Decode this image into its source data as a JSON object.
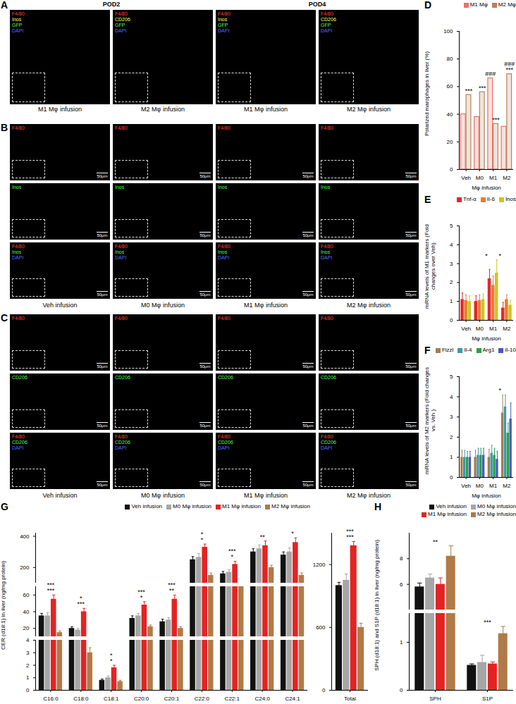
{
  "image_panels": [
    {
      "panel": "A",
      "groups": [
        {
          "header": "POD2",
          "images": [
            {
              "caption": "M1 Mφ infusion",
              "channels": [
                {
                  "label": "F4/80",
                  "color": "#ff4040"
                },
                {
                  "label": "Inos",
                  "color": "#ffff50"
                },
                {
                  "label": "GFP",
                  "color": "#50ff50"
                },
                {
                  "label": "DAPI",
                  "color": "#5070ff"
                }
              ]
            },
            {
              "caption": "M2 Mφ infusion",
              "channels": [
                {
                  "label": "F4/80",
                  "color": "#ff4040"
                },
                {
                  "label": "CD206",
                  "color": "#ffff50"
                },
                {
                  "label": "GFP",
                  "color": "#50ff50"
                },
                {
                  "label": "DAPI",
                  "color": "#5070ff"
                }
              ]
            }
          ]
        },
        {
          "header": "POD4",
          "images": [
            {
              "caption": "M1 Mφ infusion",
              "channels": [
                {
                  "label": "F4/80",
                  "color": "#ff4040"
                },
                {
                  "label": "Inos",
                  "color": "#ffff50"
                },
                {
                  "label": "GFP",
                  "color": "#50ff50"
                },
                {
                  "label": "DAPI",
                  "color": "#5070ff"
                }
              ]
            },
            {
              "caption": "M2 Mφ infusion",
              "channels": [
                {
                  "label": "F4/80",
                  "color": "#ff4040"
                },
                {
                  "label": "CD206",
                  "color": "#ffff50"
                },
                {
                  "label": "GFP",
                  "color": "#50ff50"
                },
                {
                  "label": "DAPI",
                  "color": "#5070ff"
                }
              ]
            }
          ]
        }
      ]
    },
    {
      "panel": "B",
      "scale_bar": "50μm",
      "captions": [
        "Veh infusion",
        "M0 Mφ infusion",
        "M1 Mφ infusion",
        "M2 Mφ infusion"
      ],
      "rows": [
        [
          {
            "label": "F4/80",
            "color": "#ff4040"
          }
        ],
        [
          {
            "label": "Inos",
            "color": "#50ff50"
          }
        ],
        [
          {
            "label": "F4/80",
            "color": "#ff4040"
          },
          {
            "label": "Inos",
            "color": "#50ff50"
          },
          {
            "label": "DAPI",
            "color": "#5070ff"
          }
        ]
      ]
    },
    {
      "panel": "C",
      "scale_bar": "50μm",
      "captions": [
        "Veh infusion",
        "M0 Mφ infusion",
        "M1 Mφ infusion",
        "M2 Mφ infusion"
      ],
      "rows": [
        [
          {
            "label": "F4/80",
            "color": "#ff4040"
          }
        ],
        [
          {
            "label": "CD206",
            "color": "#50ff50"
          }
        ],
        [
          {
            "label": "F4/80",
            "color": "#ff4040"
          },
          {
            "label": "CD206",
            "color": "#50ff50"
          },
          {
            "label": "DAPI",
            "color": "#5070ff"
          }
        ]
      ]
    }
  ],
  "chart_data": [
    {
      "panel": "D",
      "type": "bar",
      "y_label": "Polarized marophages in liver (%)",
      "x_label": "Mφ infusion",
      "categories": [
        "Veh",
        "M0",
        "M1",
        "M2"
      ],
      "series": [
        {
          "name": "M1 Mφ",
          "color": "#e8706a",
          "values": [
            40,
            38,
            66,
            31
          ]
        },
        {
          "name": "M2 Mφ",
          "color": "#b5835a",
          "values": [
            54,
            56,
            33,
            69
          ]
        }
      ],
      "ylim": [
        0,
        100
      ],
      "yticks": [
        0,
        20,
        40,
        60,
        80,
        100
      ],
      "legend": "top",
      "annotations": [
        {
          "category": "Veh",
          "series": "M2 Mφ",
          "texts": [
            "***"
          ]
        },
        {
          "category": "M0",
          "series": "M2 Mφ",
          "texts": [
            "***"
          ]
        },
        {
          "category": "M1",
          "series": "M1 Mφ",
          "texts": [
            "###"
          ]
        },
        {
          "category": "M1",
          "series": "M2 Mφ",
          "texts": [
            "***"
          ]
        },
        {
          "category": "M2",
          "series": "M2 Mφ",
          "texts": [
            "***",
            "###"
          ]
        }
      ]
    },
    {
      "panel": "E",
      "type": "bar",
      "y_label": "mRNA levels of M1 markers (Fold changes over Veh)",
      "x_label": "Mφ infusion",
      "categories": [
        "Veh",
        "M0",
        "M1",
        "M2"
      ],
      "series": [
        {
          "name": "Tnf-α",
          "color": "#e02a2a",
          "values": [
            1.1,
            1.0,
            2.2,
            0.65
          ],
          "errors": [
            0.35,
            0.3,
            0.5,
            0.3
          ]
        },
        {
          "name": "Il-6",
          "color": "#f07a2a",
          "values": [
            1.05,
            1.05,
            1.85,
            1.1
          ],
          "errors": [
            0.3,
            0.3,
            0.5,
            0.25
          ]
        },
        {
          "name": "Inos",
          "color": "#c8c820",
          "values": [
            1.0,
            1.1,
            2.5,
            0.8
          ],
          "errors": [
            0.3,
            0.3,
            0.7,
            0.25
          ]
        }
      ],
      "ylim": [
        0,
        5
      ],
      "yticks": [
        0,
        1,
        2,
        3,
        4,
        5
      ],
      "legend": "top",
      "annotations": [
        {
          "categories": [
            "M0",
            "M1"
          ],
          "texts": [
            "*"
          ]
        },
        {
          "categories": [
            "M1",
            "M2"
          ],
          "texts": [
            "*"
          ]
        }
      ]
    },
    {
      "panel": "F",
      "type": "bar",
      "y_label": "mRNA levels of M2 markers (Fold changes vs. Veh )",
      "x_label": "Mφ infusion",
      "categories": [
        "Veh",
        "M0",
        "M1",
        "M2"
      ],
      "series": [
        {
          "name": "Fizzl",
          "color": "#a67c52",
          "values": [
            1.0,
            1.0,
            1.0,
            3.2
          ],
          "errors": [
            0.35,
            0.35,
            0.4,
            0.9
          ]
        },
        {
          "name": "Il-4",
          "color": "#3a9ab0",
          "values": [
            1.0,
            1.1,
            1.2,
            3.5
          ],
          "errors": [
            0.35,
            0.35,
            0.4,
            0.6
          ]
        },
        {
          "name": "Arg1",
          "color": "#2e9e44",
          "values": [
            1.0,
            1.1,
            1.1,
            2.2
          ],
          "errors": [
            0.3,
            0.35,
            0.35,
            0.5
          ]
        },
        {
          "name": "Il-10",
          "color": "#4a56c8",
          "values": [
            1.0,
            1.1,
            0.9,
            2.9
          ],
          "errors": [
            0.3,
            0.35,
            0.4,
            0.8
          ]
        }
      ],
      "ylim": [
        0,
        5
      ],
      "yticks": [
        0,
        1,
        2,
        3,
        4,
        5
      ],
      "legend": "top",
      "annotations": [
        {
          "categories": [
            "M1",
            "M2"
          ],
          "texts": [
            "*"
          ]
        }
      ]
    },
    {
      "panel": "G",
      "type": "bar",
      "y_label": "CER (d18:1) in liver (ng/mg protein)",
      "categories": [
        "C16:0",
        "C18:0",
        "C18:1",
        "C20:0",
        "C20:1",
        "C22:0",
        "C22:1",
        "C24:0",
        "C24:1"
      ],
      "series": [
        {
          "name": "Veh infusion",
          "color": "#111111",
          "values": [
            35,
            20,
            0.8,
            32,
            28,
            250,
            160,
            300,
            280
          ],
          "errors": [
            3,
            2,
            0.1,
            3,
            3,
            20,
            15,
            20,
            20
          ]
        },
        {
          "name": "M0 Mφ infusion",
          "color": "#a6a6a6",
          "values": [
            35,
            18,
            1.0,
            35,
            30,
            265,
            170,
            320,
            300
          ],
          "errors": [
            4,
            2,
            0.15,
            3,
            3,
            25,
            15,
            25,
            25
          ]
        },
        {
          "name": "M1 Mφ infusion",
          "color": "#e32323",
          "values": [
            55,
            40,
            1.8,
            48,
            55,
            330,
            220,
            340,
            360
          ],
          "errors": [
            5,
            4,
            0.2,
            4,
            5,
            20,
            20,
            30,
            30
          ]
        },
        {
          "name": "M2 Mφ infusion",
          "color": "#b07a48",
          "values": [
            15,
            3,
            0.7,
            22,
            20,
            150,
            90,
            200,
            150
          ],
          "errors": [
            2,
            0.4,
            0.1,
            2,
            2,
            15,
            10,
            15,
            15
          ]
        }
      ],
      "axis_segments": [
        {
          "ylim": [
            0,
            4
          ],
          "yticks": [
            0,
            1,
            2,
            3,
            4
          ]
        },
        {
          "ylim": [
            10,
            70
          ],
          "yticks": [
            20,
            40,
            60
          ]
        },
        {
          "ylim": [
            100,
            420
          ],
          "yticks": [
            200,
            400
          ]
        }
      ],
      "legend": "top",
      "annotations": [
        {
          "categories": [
            "C16:0"
          ],
          "texts": [
            "***",
            "***"
          ]
        },
        {
          "categories": [
            "C18:0"
          ],
          "texts": [
            "***",
            "*"
          ]
        },
        {
          "categories": [
            "C18:1"
          ],
          "texts": [
            "*",
            "*"
          ]
        },
        {
          "categories": [
            "C20:0"
          ],
          "texts": [
            "*",
            "***"
          ]
        },
        {
          "categories": [
            "C20:1"
          ],
          "texts": [
            "**",
            "***"
          ]
        },
        {
          "categories": [
            "C22:0"
          ],
          "texts": [
            "*",
            "*"
          ]
        },
        {
          "categories": [
            "C22:1"
          ],
          "texts": [
            "*",
            "***"
          ]
        },
        {
          "categories": [
            "C24:0"
          ],
          "texts": [
            "**"
          ]
        },
        {
          "categories": [
            "C24:1"
          ],
          "texts": [
            "*"
          ]
        }
      ]
    },
    {
      "type": "bar",
      "categories": [
        "Total"
      ],
      "series": [
        {
          "name": "Veh infusion",
          "color": "#111111",
          "values": [
            1000
          ],
          "errors": [
            30
          ]
        },
        {
          "name": "M0 Mφ infusion",
          "color": "#a6a6a6",
          "values": [
            1050
          ],
          "errors": [
            60
          ]
        },
        {
          "name": "M1 Mφ infusion",
          "color": "#e32323",
          "values": [
            1380
          ],
          "errors": [
            40
          ]
        },
        {
          "name": "M2 Mφ infusion",
          "color": "#b07a48",
          "values": [
            600
          ],
          "errors": [
            40
          ]
        }
      ],
      "ylim": [
        0,
        1500
      ],
      "yticks": [
        0,
        600,
        1200
      ],
      "annotations": [
        {
          "categories": [
            "Total"
          ],
          "texts": [
            "***",
            "***"
          ]
        }
      ]
    },
    {
      "panel": "H",
      "type": "bar",
      "y_label": "SPH (d18:1) and S1P (d18:1) in liver (ng/mg protein)",
      "categories": [
        "SPH",
        "S1P"
      ],
      "series": [
        {
          "name": "Veh infusion",
          "color": "#111111",
          "values": [
            5.8,
            0.52
          ],
          "errors": [
            0.3,
            0.03
          ]
        },
        {
          "name": "M0 Mφ infusion",
          "color": "#a6a6a6",
          "values": [
            6.5,
            0.58
          ],
          "errors": [
            0.3,
            0.15
          ]
        },
        {
          "name": "M1 Mφ infusion",
          "color": "#e32323",
          "values": [
            6.0,
            0.55
          ],
          "errors": [
            0.5,
            0.04
          ]
        },
        {
          "name": "M2 Mφ infusion",
          "color": "#b07a48",
          "values": [
            8.2,
            1.18
          ],
          "errors": [
            0.8,
            0.15
          ]
        }
      ],
      "axis_segments": [
        {
          "ylim": [
            0,
            1.6
          ],
          "yticks": [
            0,
            1
          ]
        },
        {
          "ylim": [
            4,
            10
          ],
          "yticks": [
            6,
            8
          ]
        }
      ],
      "legend": "top",
      "annotations": [
        {
          "categories": [
            "SPH"
          ],
          "texts": [
            "**"
          ]
        },
        {
          "categories": [
            "S1P"
          ],
          "texts": [
            "***"
          ]
        }
      ]
    }
  ]
}
